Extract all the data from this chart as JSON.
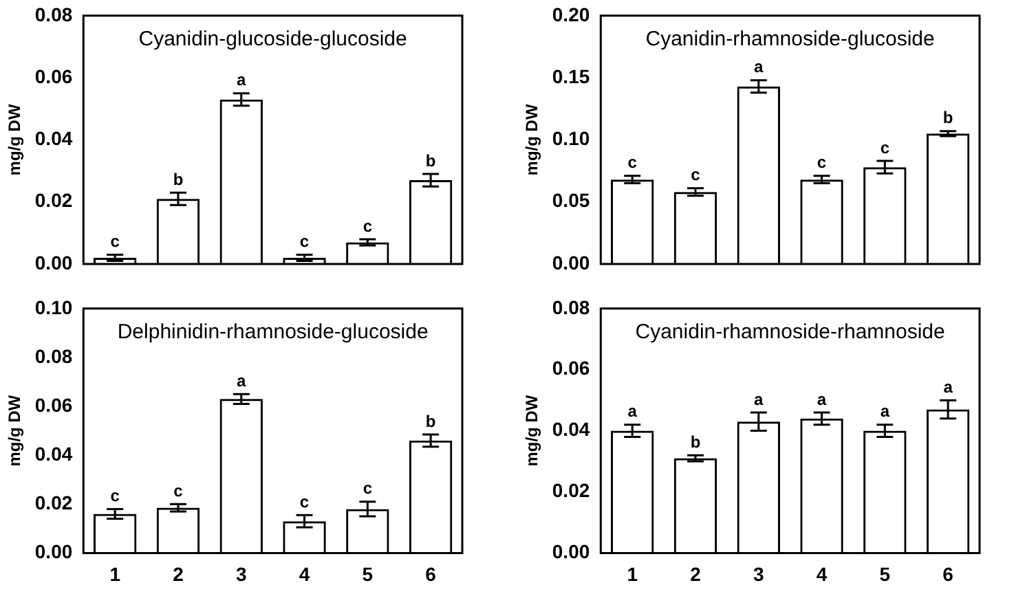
{
  "chart_data": [
    {
      "type": "bar",
      "title": "Cyanidin-glucoside-glucoside",
      "ylabel": "mg/g DW",
      "categories": [
        "1",
        "2",
        "3",
        "4",
        "5",
        "6"
      ],
      "tick_labels": "y",
      "color": "#000000",
      "values": [
        0.002,
        0.021,
        0.053,
        0.002,
        0.007,
        0.027
      ],
      "errors": [
        0.001,
        0.002,
        0.002,
        0.001,
        0.001,
        0.002
      ],
      "ylim": [
        0,
        0.08
      ],
      "yticks": [
        {
          "value": 0,
          "label": "0.00"
        },
        {
          "value": 0.02,
          "label": "0.02"
        },
        {
          "value": 0.04,
          "label": "0.04"
        },
        {
          "value": 0.06,
          "label": "0.06"
        },
        {
          "value": 0.08,
          "label": "0.08"
        }
      ],
      "annotations": [
        {
          "text": "c",
          "x": "1",
          "y": 0.003
        },
        {
          "text": "b",
          "x": "2",
          "y": 0.023
        },
        {
          "text": "a",
          "x": "3",
          "y": 0.055
        },
        {
          "text": "c",
          "x": "4",
          "y": 0.003
        },
        {
          "text": "c",
          "x": "5",
          "y": 0.008
        },
        {
          "text": "b",
          "x": "6",
          "y": 0.029
        }
      ]
    },
    {
      "type": "bar",
      "title": "Cyanidin-rhamnoside-glucoside",
      "ylabel": "mg/g DW",
      "categories": [
        "1",
        "2",
        "3",
        "4",
        "5",
        "6"
      ],
      "tick_labels": "y",
      "color": "#000000",
      "values": [
        0.068,
        0.058,
        0.143,
        0.068,
        0.078,
        0.105
      ],
      "errors": [
        0.003,
        0.003,
        0.005,
        0.003,
        0.005,
        0.002
      ],
      "ylim": [
        0,
        0.2
      ],
      "yticks": [
        {
          "value": 0,
          "label": "0.00"
        },
        {
          "value": 0.05,
          "label": "0.05"
        },
        {
          "value": 0.1,
          "label": "0.10"
        },
        {
          "value": 0.15,
          "label": "0.15"
        },
        {
          "value": 0.2,
          "label": "0.20"
        }
      ],
      "annotations": [
        {
          "text": "c",
          "x": "1",
          "y": 0.071
        },
        {
          "text": "c",
          "x": "2",
          "y": 0.061
        },
        {
          "text": "a",
          "x": "3",
          "y": 0.148
        },
        {
          "text": "c",
          "x": "4",
          "y": 0.071
        },
        {
          "text": "c",
          "x": "5",
          "y": 0.083
        },
        {
          "text": "b",
          "x": "6",
          "y": 0.107
        }
      ]
    },
    {
      "type": "bar",
      "title": "Delphinidin-rhamnoside-glucoside",
      "ylabel": "mg/g DW",
      "categories": [
        "1",
        "2",
        "3",
        "4",
        "5",
        "6"
      ],
      "color": "#000000",
      "values": [
        0.016,
        0.0185,
        0.063,
        0.013,
        0.018,
        0.046
      ],
      "errors": [
        0.002,
        0.0015,
        0.002,
        0.0025,
        0.003,
        0.0025
      ],
      "ylim": [
        0,
        0.1
      ],
      "yticks": [
        {
          "value": 0,
          "label": "0.00"
        },
        {
          "value": 0.02,
          "label": "0.02"
        },
        {
          "value": 0.04,
          "label": "0.04"
        },
        {
          "value": 0.06,
          "label": "0.06"
        },
        {
          "value": 0.08,
          "label": "0.08"
        },
        {
          "value": 0.1,
          "label": "0.10"
        }
      ],
      "annotations": [
        {
          "text": "c",
          "x": "1",
          "y": 0.018
        },
        {
          "text": "c",
          "x": "2",
          "y": 0.02
        },
        {
          "text": "a",
          "x": "3",
          "y": 0.065
        },
        {
          "text": "c",
          "x": "4",
          "y": 0.0155
        },
        {
          "text": "c",
          "x": "5",
          "y": 0.021
        },
        {
          "text": "b",
          "x": "6",
          "y": 0.0485
        }
      ]
    },
    {
      "type": "bar",
      "title": "Cyanidin-rhamnoside-rhamnoside",
      "ylabel": "mg/g DW",
      "categories": [
        "1",
        "2",
        "3",
        "4",
        "5",
        "6"
      ],
      "color": "#000000",
      "values": [
        0.04,
        0.031,
        0.043,
        0.044,
        0.04,
        0.047
      ],
      "errors": [
        0.002,
        0.001,
        0.003,
        0.002,
        0.002,
        0.003
      ],
      "ylim": [
        0,
        0.08
      ],
      "yticks": [
        {
          "value": 0,
          "label": "0.00"
        },
        {
          "value": 0.02,
          "label": "0.02"
        },
        {
          "value": 0.04,
          "label": "0.04"
        },
        {
          "value": 0.06,
          "label": "0.06"
        },
        {
          "value": 0.08,
          "label": "0.08"
        }
      ],
      "annotations": [
        {
          "text": "a",
          "x": "1",
          "y": 0.042
        },
        {
          "text": "b",
          "x": "2",
          "y": 0.032
        },
        {
          "text": "a",
          "x": "3",
          "y": 0.046
        },
        {
          "text": "a",
          "x": "4",
          "y": 0.046
        },
        {
          "text": "a",
          "x": "5",
          "y": 0.042
        },
        {
          "text": "a",
          "x": "6",
          "y": 0.05
        }
      ]
    }
  ]
}
